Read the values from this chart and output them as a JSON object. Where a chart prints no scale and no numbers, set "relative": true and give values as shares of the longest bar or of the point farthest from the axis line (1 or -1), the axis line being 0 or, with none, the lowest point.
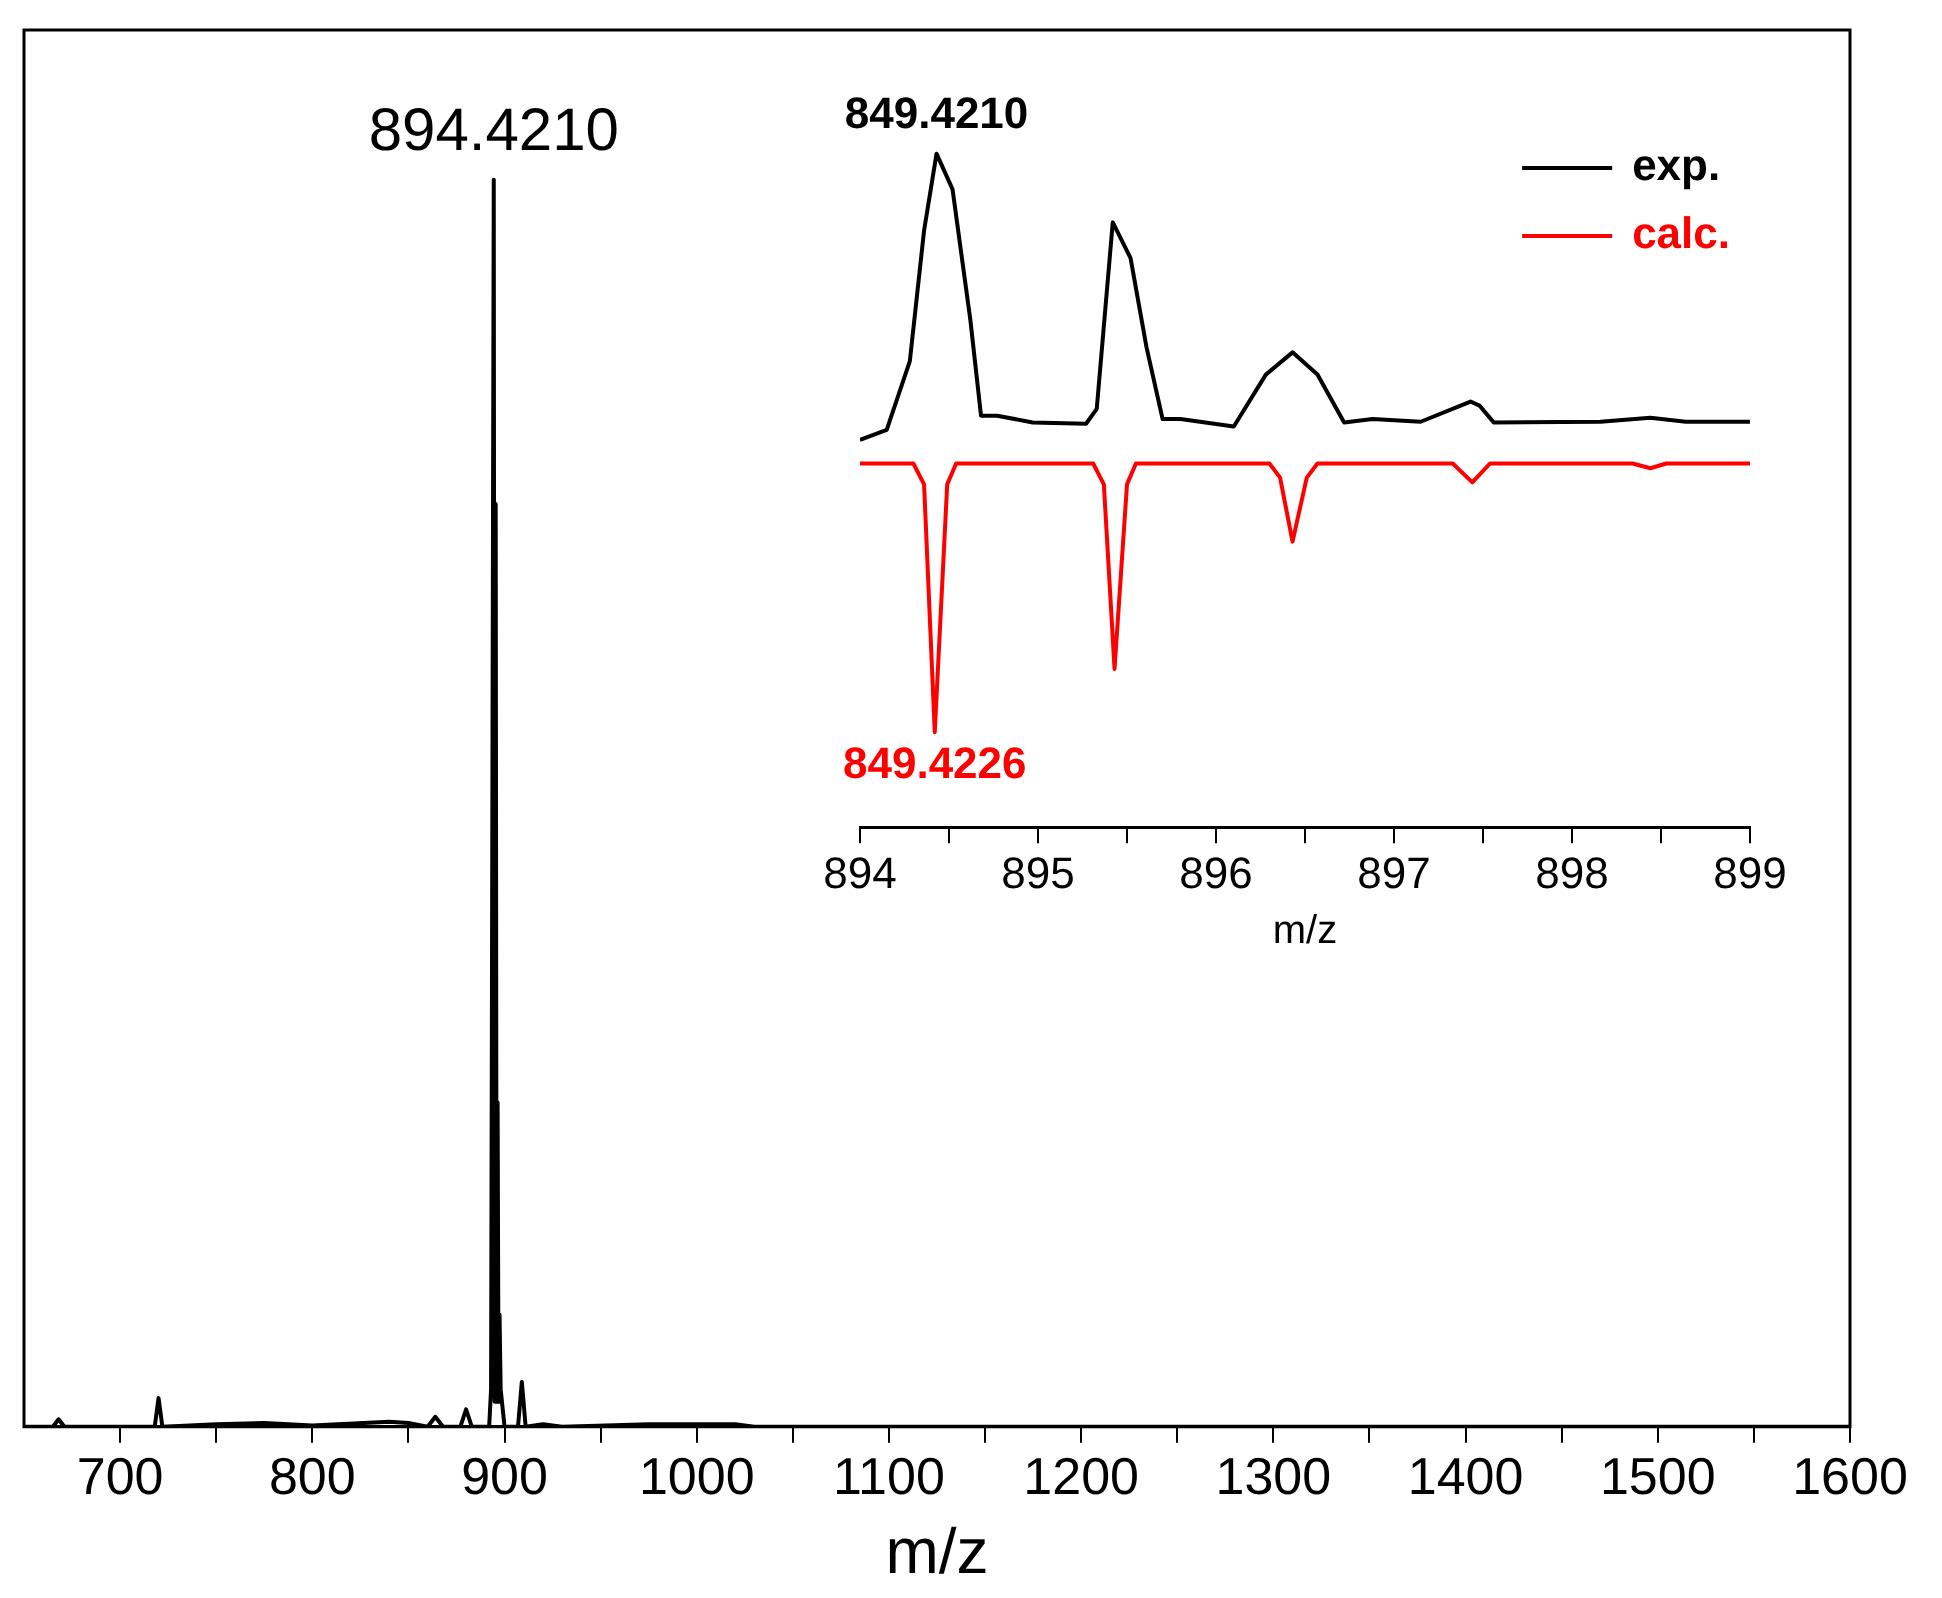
{
  "chart_data": [
    {
      "type": "line",
      "xlabel": "m/z",
      "relative": true,
      "xlim": [
        650,
        1600
      ],
      "xticks": [
        700,
        {
          "value": 750,
          "label": null
        },
        800,
        {
          "value": 850,
          "label": null
        },
        900,
        {
          "value": 950,
          "label": null
        },
        1000,
        {
          "value": 1050,
          "label": null
        },
        1100,
        {
          "value": 1150,
          "label": null
        },
        1200,
        {
          "value": 1250,
          "label": null
        },
        1300,
        {
          "value": 1350,
          "label": null
        },
        1400,
        {
          "value": 1450,
          "label": null
        },
        1500,
        {
          "value": 1550,
          "label": null
        },
        1600
      ],
      "series": [
        {
          "color": "#000000",
          "x": [
            650,
            665,
            668,
            671,
            718,
            720,
            722,
            750,
            775,
            800,
            840,
            850,
            860,
            864,
            868,
            877,
            880,
            883,
            892,
            893,
            894.4,
            894.9,
            895.4,
            895.9,
            896.4,
            896.9,
            897.4,
            898,
            900,
            907,
            909,
            911,
            920,
            930,
            975,
            1020,
            1030,
            1600
          ],
          "values": [
            0,
            0,
            0.006,
            0,
            0,
            0.023,
            0,
            0.002,
            0.003,
            0.001,
            0.004,
            0.003,
            0,
            0.008,
            0,
            0,
            0.014,
            0,
            0,
            0.03,
            1,
            0.02,
            0.74,
            0.02,
            0.26,
            0.02,
            0.09,
            0.03,
            0,
            0,
            0.036,
            0,
            0.002,
            0,
            0.002,
            0.002,
            0,
            0
          ]
        }
      ],
      "annotations": [
        {
          "text": "894.4210",
          "x": 894.4,
          "y": 1
        }
      ]
    },
    {
      "type": "line",
      "xlabel": "m/z",
      "relative": true,
      "legend": "top right",
      "xlim": [
        894,
        899
      ],
      "xticks": [
        894,
        {
          "value": 894.5,
          "label": null
        },
        895,
        {
          "value": 895.5,
          "label": null
        },
        896,
        {
          "value": 896.5,
          "label": null
        },
        897,
        {
          "value": 897.5,
          "label": null
        },
        898,
        {
          "value": 898.5,
          "label": null
        },
        899
      ],
      "series": [
        {
          "name": "exp.",
          "color": "#000000",
          "x": [
            894.0,
            894.15,
            894.28,
            894.36,
            894.43,
            894.52,
            894.62,
            894.68,
            894.77,
            894.97,
            895.27,
            895.33,
            895.42,
            895.52,
            895.61,
            895.7,
            895.8,
            896.1,
            896.28,
            896.43,
            896.57,
            896.72,
            896.88,
            897.15,
            897.43,
            897.48,
            897.56,
            898.16,
            898.44,
            898.64,
            899.0
          ],
          "values": [
            0.575,
            0.59,
            0.692,
            0.886,
            1,
            0.947,
            0.753,
            0.611,
            0.611,
            0.601,
            0.599,
            0.621,
            0.898,
            0.845,
            0.712,
            0.606,
            0.606,
            0.595,
            0.672,
            0.705,
            0.672,
            0.601,
            0.606,
            0.602,
            0.632,
            0.626,
            0.601,
            0.602,
            0.608,
            0.602,
            0.602
          ]
        },
        {
          "name": "calc.",
          "color": "#ff0000",
          "x": [
            894.0,
            894.3,
            894.36,
            894.42,
            894.49,
            894.54,
            895.31,
            895.37,
            895.43,
            895.5,
            895.55,
            896.3,
            896.36,
            896.43,
            896.51,
            896.57,
            897.33,
            897.44,
            897.54,
            898.34,
            898.44,
            898.53,
            899.0
          ],
          "values": [
            0.54,
            0.54,
            0.509,
            0.141,
            0.509,
            0.54,
            0.54,
            0.509,
            0.235,
            0.509,
            0.54,
            0.54,
            0.519,
            0.424,
            0.519,
            0.54,
            0.54,
            0.512,
            0.54,
            0.54,
            0.533,
            0.54,
            0.54
          ]
        }
      ],
      "annotations": [
        {
          "text": "849.4210",
          "x": 894.43,
          "y": 1
        },
        {
          "text": "849.4226",
          "x": 894.42,
          "y": 0.141
        }
      ]
    }
  ]
}
